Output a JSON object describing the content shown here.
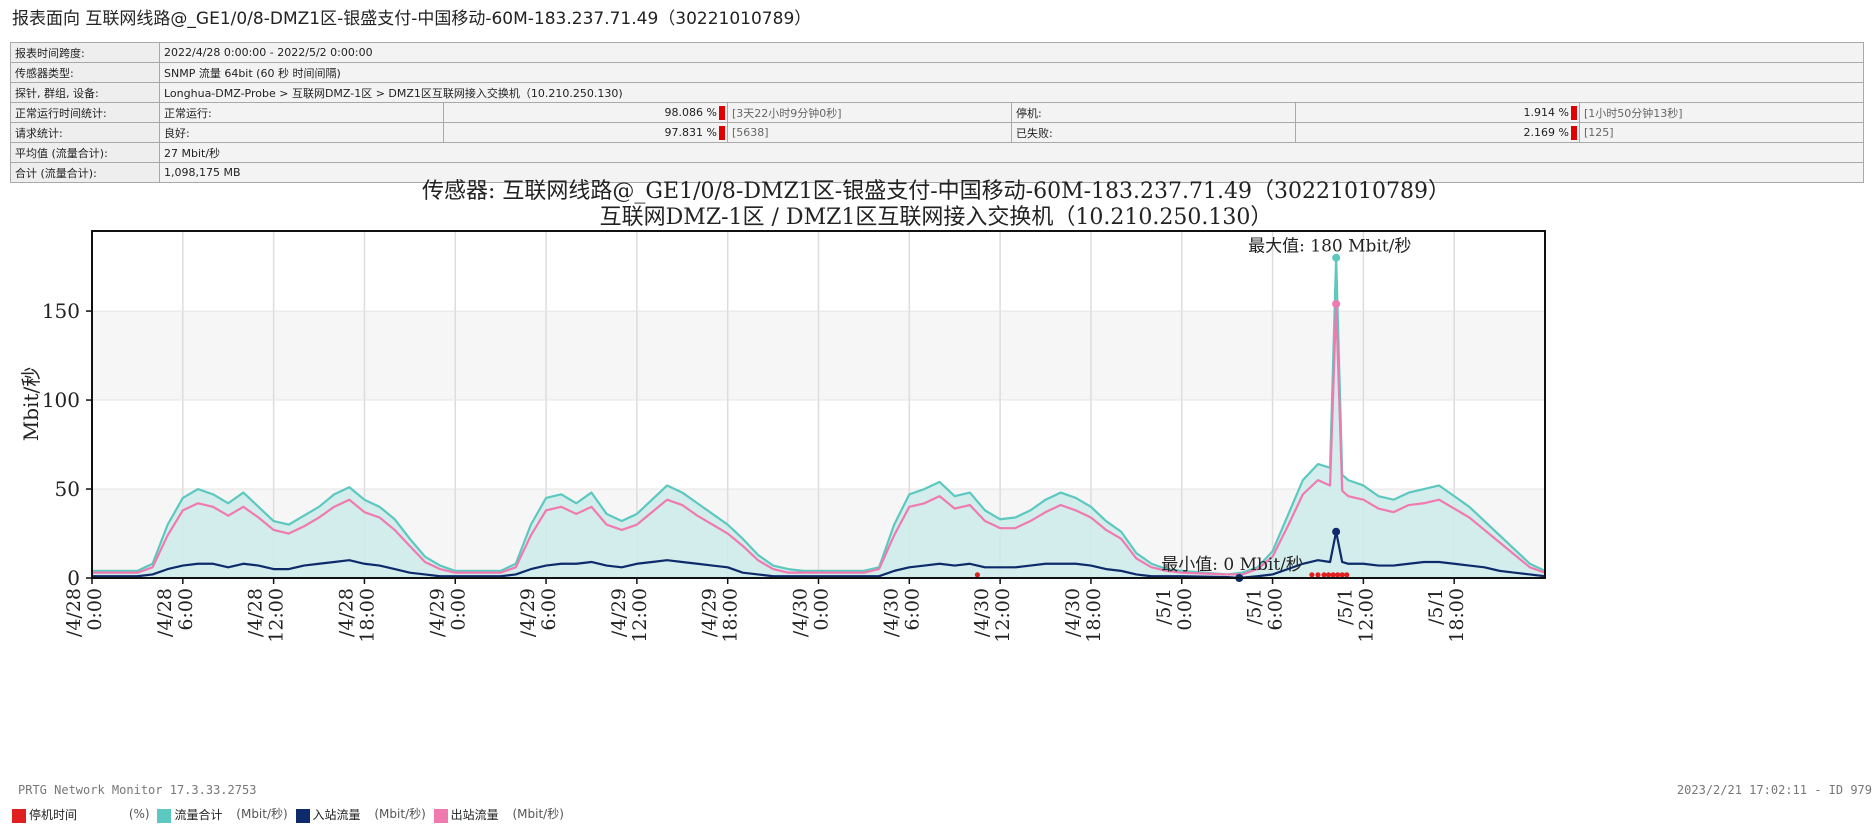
{
  "header": {
    "title": "报表面向 互联网线路@_GE1/0/8-DMZ1区-银盛支付-中国移动-60M-183.237.71.49（30221010789）"
  },
  "info": {
    "span_label": "报表时间跨度:",
    "span_value": "2022/4/28 0:00:00 - 2022/5/2 0:00:00",
    "type_label": "传感器类型:",
    "type_value": "SNMP 流量 64bit (60 秒 时间间隔)",
    "probe_label": "探针, 群组, 设备:",
    "probe_value": "Longhua-DMZ-Probe > 互联网DMZ-1区 > DMZ1区互联网接入交换机（10.210.250.130)",
    "uptime_label": "正常运行时间统计:",
    "uptime_up_label": "正常运行:",
    "uptime_up_pct": "98.086 %",
    "uptime_up_dur": "[3天22小时9分钟0秒]",
    "uptime_down_label": "停机:",
    "uptime_down_pct": "1.914 %",
    "uptime_down_dur": "[1小时50分钟13秒]",
    "req_label": "请求统计:",
    "req_good_label": "良好:",
    "req_good_pct": "97.831 %",
    "req_good_count": "[5638]",
    "req_fail_label": "已失败:",
    "req_fail_pct": "2.169 %",
    "req_fail_count": "[125]",
    "avg_label": "平均值 (流量合计):",
    "avg_value": "27 Mbit/秒",
    "total_label": "合计 (流量合计):",
    "total_value": "1,098,175 MB"
  },
  "chart_title": {
    "line1": "传感器: 互联网线路@_GE1/0/8-DMZ1区-银盛支付-中国移动-60M-183.237.71.49（30221010789）",
    "line2": "互联网DMZ-1区 / DMZ1区互联网接入交换机（10.210.250.130）"
  },
  "footer": {
    "left": "PRTG Network Monitor 17.3.33.2753",
    "right": "2023/2/21 17:02:11 - ID 979"
  },
  "legend": [
    {
      "label": "停机时间",
      "unit": "(%)",
      "color": "#e02020"
    },
    {
      "label": "流量合计",
      "unit": "(Mbit/秒)",
      "color": "#5cc8c0"
    },
    {
      "label": "入站流量",
      "unit": "(Mbit/秒)",
      "color": "#0d2a6b"
    },
    {
      "label": "出站流量",
      "unit": "(Mbit/秒)",
      "color": "#f07ab0"
    }
  ],
  "chart_data": {
    "type": "line",
    "ylabel": "Mbit/秒",
    "ylim": [
      0,
      195
    ],
    "yticks": [
      0,
      50,
      100,
      150
    ],
    "grid": true,
    "x_range_hours": [
      0,
      96
    ],
    "xticks": [
      {
        "hour": 0,
        "l1": "/4/28",
        "l2": "0:00"
      },
      {
        "hour": 6,
        "l1": "/4/28",
        "l2": "6:00"
      },
      {
        "hour": 12,
        "l1": "/4/28",
        "l2": "12:00"
      },
      {
        "hour": 18,
        "l1": "/4/28",
        "l2": "18:00"
      },
      {
        "hour": 24,
        "l1": "/4/29",
        "l2": "0:00"
      },
      {
        "hour": 30,
        "l1": "/4/29",
        "l2": "6:00"
      },
      {
        "hour": 36,
        "l1": "/4/29",
        "l2": "12:00"
      },
      {
        "hour": 42,
        "l1": "/4/29",
        "l2": "18:00"
      },
      {
        "hour": 48,
        "l1": "/4/30",
        "l2": "0:00"
      },
      {
        "hour": 54,
        "l1": "/4/30",
        "l2": "6:00"
      },
      {
        "hour": 60,
        "l1": "/4/30",
        "l2": "12:00"
      },
      {
        "hour": 66,
        "l1": "/4/30",
        "l2": "18:00"
      },
      {
        "hour": 72,
        "l1": "/5/1",
        "l2": "0:00"
      },
      {
        "hour": 78,
        "l1": "/5/1",
        "l2": "6:00"
      },
      {
        "hour": 84,
        "l1": "/5/1",
        "l2": "12:00"
      },
      {
        "hour": 90,
        "l1": "/5/1",
        "l2": "18:00"
      }
    ],
    "max_annotation": {
      "text": "最大值: 180 Mbit/秒",
      "hour": 82.2,
      "value": 180
    },
    "min_annotation": {
      "text": "最小值: 0 Mbit/秒",
      "hour": 75.8,
      "value": 0
    },
    "series": [
      {
        "name": "流量合计",
        "color": "#5cc8c0",
        "hours": [
          0,
          3,
          4,
          5,
          6,
          7,
          8,
          9,
          10,
          11,
          12,
          13,
          14,
          15,
          16,
          17,
          18,
          19,
          20,
          21,
          22,
          23,
          24,
          27,
          28,
          29,
          30,
          31,
          32,
          33,
          34,
          35,
          36,
          37,
          38,
          39,
          40,
          41,
          42,
          43,
          44,
          45,
          46,
          47,
          48,
          51,
          52,
          53,
          54,
          55,
          56,
          57,
          58,
          59,
          60,
          61,
          62,
          63,
          64,
          65,
          66,
          67,
          68,
          69,
          70,
          71,
          72,
          75,
          76,
          77,
          78,
          79,
          80,
          81,
          81.8,
          82.2,
          82.6,
          83,
          84,
          85,
          86,
          87,
          88,
          89,
          90,
          91,
          92,
          93,
          94,
          95,
          96
        ],
        "values": [
          4,
          4,
          8,
          30,
          45,
          50,
          47,
          42,
          48,
          40,
          32,
          30,
          35,
          40,
          47,
          51,
          44,
          40,
          33,
          22,
          12,
          7,
          4,
          4,
          8,
          30,
          45,
          47,
          42,
          48,
          36,
          32,
          36,
          44,
          52,
          48,
          42,
          36,
          30,
          22,
          13,
          7,
          5,
          4,
          4,
          4,
          6,
          30,
          47,
          50,
          54,
          46,
          48,
          38,
          33,
          34,
          38,
          44,
          48,
          45,
          40,
          32,
          26,
          14,
          8,
          5,
          4,
          2,
          3,
          6,
          15,
          35,
          55,
          64,
          62,
          180,
          58,
          55,
          52,
          46,
          44,
          48,
          50,
          52,
          46,
          40,
          32,
          24,
          16,
          8,
          4
        ]
      },
      {
        "name": "出站流量",
        "color": "#f07ab0",
        "hours": [
          0,
          3,
          4,
          5,
          6,
          7,
          8,
          9,
          10,
          11,
          12,
          13,
          14,
          15,
          16,
          17,
          18,
          19,
          20,
          21,
          22,
          23,
          24,
          27,
          28,
          29,
          30,
          31,
          32,
          33,
          34,
          35,
          36,
          37,
          38,
          39,
          40,
          41,
          42,
          43,
          44,
          45,
          46,
          47,
          48,
          51,
          52,
          53,
          54,
          55,
          56,
          57,
          58,
          59,
          60,
          61,
          62,
          63,
          64,
          65,
          66,
          67,
          68,
          69,
          70,
          71,
          72,
          75,
          76,
          77,
          78,
          79,
          80,
          81,
          81.8,
          82.2,
          82.6,
          83,
          84,
          85,
          86,
          87,
          88,
          89,
          90,
          91,
          92,
          93,
          94,
          95,
          96
        ],
        "values": [
          3,
          3,
          6,
          24,
          38,
          42,
          40,
          35,
          40,
          34,
          27,
          25,
          29,
          34,
          40,
          44,
          37,
          34,
          27,
          18,
          9,
          5,
          3,
          3,
          6,
          24,
          38,
          40,
          36,
          40,
          30,
          27,
          30,
          37,
          44,
          41,
          35,
          30,
          25,
          18,
          10,
          5,
          3,
          3,
          3,
          3,
          5,
          24,
          40,
          42,
          46,
          39,
          41,
          32,
          28,
          28,
          32,
          37,
          41,
          38,
          34,
          27,
          22,
          11,
          6,
          4,
          3,
          2,
          2,
          5,
          12,
          29,
          47,
          55,
          52,
          154,
          49,
          46,
          44,
          39,
          37,
          41,
          42,
          44,
          39,
          34,
          27,
          20,
          13,
          6,
          3
        ]
      },
      {
        "name": "入站流量",
        "color": "#0d2a6b",
        "hours": [
          0,
          3,
          4,
          5,
          6,
          7,
          8,
          9,
          10,
          11,
          12,
          13,
          14,
          15,
          16,
          17,
          18,
          19,
          20,
          21,
          22,
          23,
          24,
          27,
          28,
          29,
          30,
          31,
          32,
          33,
          34,
          35,
          36,
          37,
          38,
          39,
          40,
          41,
          42,
          43,
          44,
          45,
          46,
          47,
          48,
          51,
          52,
          53,
          54,
          55,
          56,
          57,
          58,
          59,
          60,
          61,
          62,
          63,
          64,
          65,
          66,
          67,
          68,
          69,
          70,
          71,
          72,
          75,
          75.8,
          77,
          78,
          79,
          80,
          81,
          81.8,
          82.2,
          82.6,
          83,
          84,
          85,
          86,
          87,
          88,
          89,
          90,
          91,
          92,
          93,
          94,
          95,
          96
        ],
        "values": [
          1,
          1,
          2,
          5,
          7,
          8,
          8,
          6,
          8,
          7,
          5,
          5,
          7,
          8,
          9,
          10,
          8,
          7,
          5,
          3,
          2,
          1,
          1,
          1,
          2,
          5,
          7,
          8,
          8,
          9,
          7,
          6,
          8,
          9,
          10,
          9,
          8,
          7,
          6,
          3,
          2,
          1,
          1,
          1,
          1,
          1,
          1,
          4,
          6,
          7,
          8,
          7,
          8,
          6,
          6,
          6,
          7,
          8,
          8,
          8,
          7,
          5,
          4,
          2,
          1,
          1,
          1,
          0.5,
          0,
          1,
          2,
          5,
          8,
          10,
          9,
          26,
          9,
          8,
          8,
          7,
          7,
          8,
          9,
          9,
          8,
          7,
          6,
          4,
          3,
          2,
          1
        ]
      }
    ],
    "downtime_marks_hours": [
      58.5,
      80.6,
      81.0,
      81.4,
      81.7,
      82.0,
      82.3,
      82.6,
      82.9
    ]
  }
}
